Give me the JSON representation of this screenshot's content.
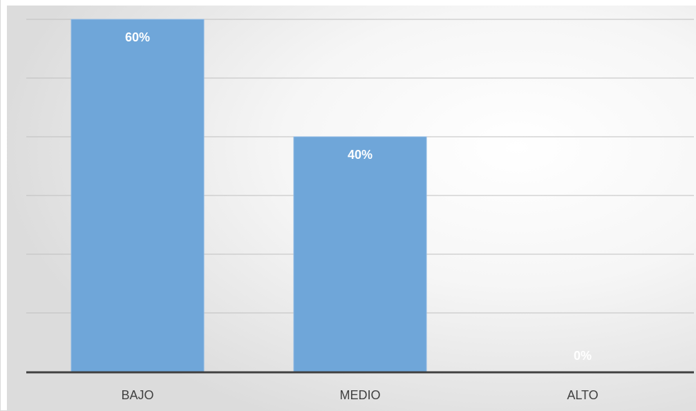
{
  "chart_data": {
    "type": "bar",
    "categories": [
      "BAJO",
      "MEDIO",
      "ALTO"
    ],
    "values": [
      60,
      40,
      0
    ],
    "data_labels": [
      "60%",
      "40%",
      "0%"
    ],
    "ylim": [
      0,
      60
    ],
    "grid": true,
    "legend": "none",
    "colors": {
      "bar": "#6fa6d9",
      "bar_border": "#8db8e2",
      "grid": "#bfbfbf",
      "axis": "#404040",
      "label": "#ffffff",
      "category_text": "#404040"
    }
  }
}
